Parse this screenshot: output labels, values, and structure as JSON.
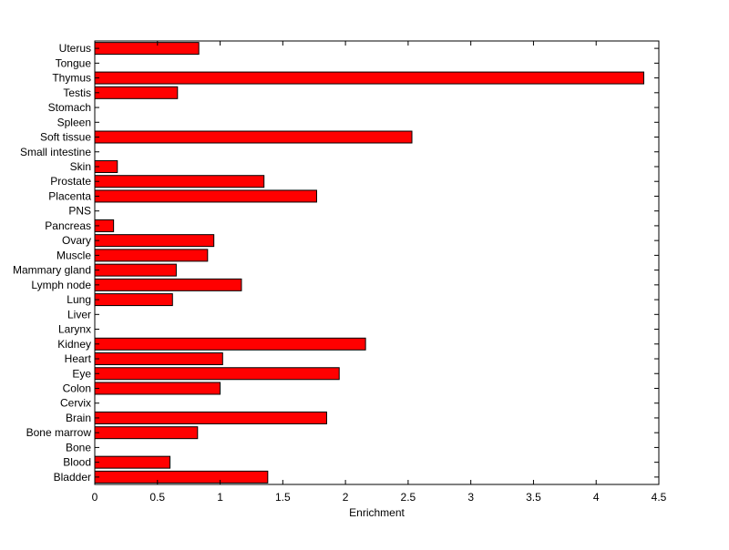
{
  "chart_data": {
    "type": "bar",
    "orientation": "horizontal",
    "title": "",
    "xlabel": "Enrichment",
    "ylabel": "",
    "xlim": [
      0,
      4.5
    ],
    "xticks": [
      0,
      0.5,
      1,
      1.5,
      2,
      2.5,
      3,
      3.5,
      4,
      4.5
    ],
    "xtick_labels": [
      "0",
      "0.5",
      "1",
      "1.5",
      "2",
      "2.5",
      "3",
      "3.5",
      "4",
      "4.5"
    ],
    "grid": false,
    "bar_color": "#ff0000",
    "edge_color": "#000000",
    "categories": [
      "Bladder",
      "Blood",
      "Bone",
      "Bone marrow",
      "Brain",
      "Cervix",
      "Colon",
      "Eye",
      "Heart",
      "Kidney",
      "Larynx",
      "Liver",
      "Lung",
      "Lymph node",
      "Mammary gland",
      "Muscle",
      "Ovary",
      "Pancreas",
      "PNS",
      "Placenta",
      "Prostate",
      "Skin",
      "Small intestine",
      "Soft tissue",
      "Spleen",
      "Stomach",
      "Testis",
      "Thymus",
      "Tongue",
      "Uterus"
    ],
    "values": [
      1.38,
      0.6,
      0,
      0.82,
      1.85,
      0,
      1.0,
      1.95,
      1.02,
      2.16,
      0,
      0,
      0.62,
      1.17,
      0.65,
      0.9,
      0.95,
      0.15,
      0,
      1.77,
      1.35,
      0.18,
      0,
      2.53,
      0,
      0,
      0.66,
      4.38,
      0,
      0.83
    ]
  }
}
